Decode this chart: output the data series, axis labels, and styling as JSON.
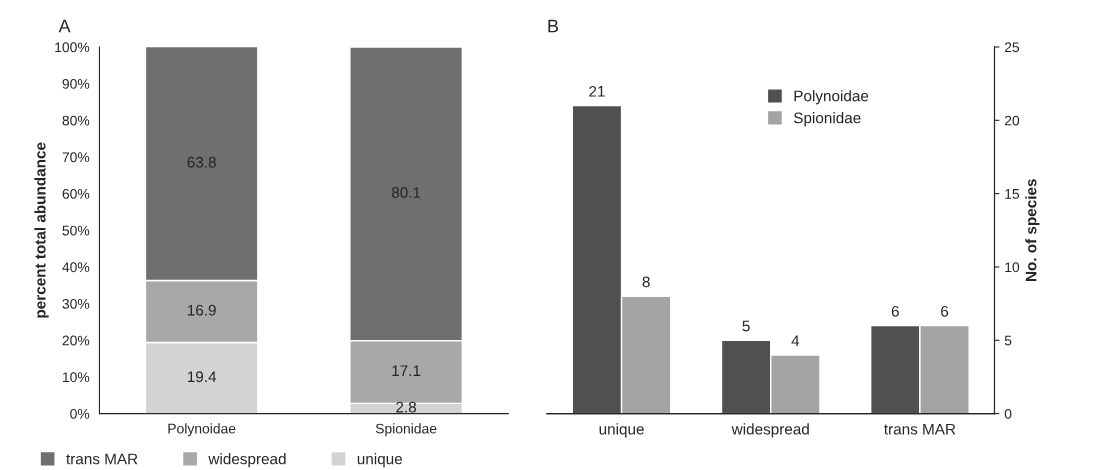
{
  "chart_data": [
    {
      "type": "bar",
      "title": "A",
      "ylabel": "percent total abundance",
      "categories": [
        "Polynoidae",
        "Spionidae"
      ],
      "stacked": true,
      "data_labels": true,
      "legend": "bottom",
      "grid": false,
      "ylim": [
        0,
        100
      ],
      "yticks": [
        {
          "value": 0,
          "label": "0%"
        },
        {
          "value": 10,
          "label": "10%"
        },
        {
          "value": 20,
          "label": "20%"
        },
        {
          "value": 30,
          "label": "30%"
        },
        {
          "value": 40,
          "label": "40%"
        },
        {
          "value": 50,
          "label": "50%"
        },
        {
          "value": 60,
          "label": "60%"
        },
        {
          "value": 70,
          "label": "70%"
        },
        {
          "value": 80,
          "label": "80%"
        },
        {
          "value": 90,
          "label": "90%"
        },
        {
          "value": 100,
          "label": "100%"
        }
      ],
      "series": [
        {
          "name": "unique",
          "color": "#d3d3d3",
          "values": [
            19.4,
            2.8
          ]
        },
        {
          "name": "widespread",
          "color": "#a8a8a8",
          "values": [
            16.9,
            17.1
          ]
        },
        {
          "name": "trans MAR",
          "color": "#6f6f6f",
          "values": [
            63.8,
            80.1
          ]
        }
      ]
    },
    {
      "type": "bar",
      "title": "B",
      "y2label": "No. of species",
      "categories": [
        "unique",
        "widespread",
        "trans MAR"
      ],
      "data_labels": true,
      "legend": "top right",
      "grid": false,
      "y2lim": [
        0,
        25
      ],
      "y2ticks": [
        0,
        5,
        10,
        15,
        20,
        25
      ],
      "series": [
        {
          "name": "Polynoidae",
          "color": "#505050",
          "axis": "y2",
          "values": [
            21,
            5,
            6
          ]
        },
        {
          "name": "Spionidae",
          "color": "#a3a3a3",
          "axis": "y2",
          "values": [
            8,
            4,
            6
          ]
        }
      ]
    }
  ]
}
